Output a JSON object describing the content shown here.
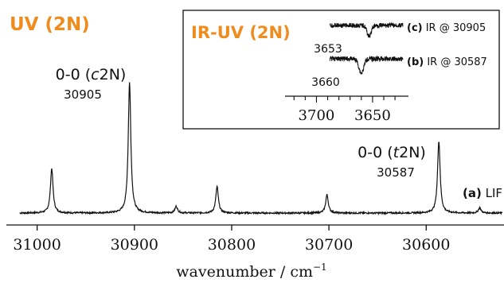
{
  "chart_data": [
    {
      "type": "line",
      "title": "UV (2N)",
      "title_color": "#f08c1e",
      "xlabel": "wavenumber / cm",
      "xlabel_sup": "−1",
      "xlim": [
        31030,
        30520
      ],
      "x_reversed": true,
      "grid": false,
      "xticks": [
        31000,
        30900,
        30800,
        30700,
        30600
      ],
      "xtick_labels": [
        "31000",
        "30900",
        "30800",
        "30700",
        "30600"
      ],
      "series": [
        {
          "label": "(a) LIF",
          "label_bold": "(a)",
          "label_rest": " LIF",
          "baseline": 0.0,
          "peaks": [
            {
              "x": 30985,
              "y": 0.34
            },
            {
              "x": 30905,
              "y": 1.0
            },
            {
              "x": 30857,
              "y": 0.05
            },
            {
              "x": 30815,
              "y": 0.2
            },
            {
              "x": 30702,
              "y": 0.14
            },
            {
              "x": 30587,
              "y": 0.55
            },
            {
              "x": 30545,
              "y": 0.04
            }
          ]
        }
      ],
      "annotations": [
        {
          "text_pre": "0-0 (",
          "text_italic": "c",
          "text_post": "2N)",
          "value": "30905",
          "x": 30905
        },
        {
          "text_pre": "0-0 (",
          "text_italic": "t",
          "text_post": "2N)",
          "value": "30587",
          "x": 30587
        }
      ]
    },
    {
      "type": "line",
      "title": "IR-UV (2N)",
      "title_color": "#f08c1e",
      "xlim": [
        3728,
        3618
      ],
      "x_reversed": true,
      "grid": false,
      "xticks": [
        3700,
        3650
      ],
      "xtick_labels": [
        "3700",
        "3650"
      ],
      "series": [
        {
          "label": "(c) IR @ 30905",
          "label_bold": "(c)",
          "label_rest": " IR @ 30905",
          "dip_x": 3653,
          "dip_label": "3653",
          "x_range": [
            3688,
            3623
          ]
        },
        {
          "label": "(b) IR @ 30587",
          "label_bold": "(b)",
          "label_rest": " IR @ 30587",
          "dip_x": 3660,
          "dip_label": "3660",
          "x_range": [
            3688,
            3623
          ]
        }
      ]
    }
  ]
}
